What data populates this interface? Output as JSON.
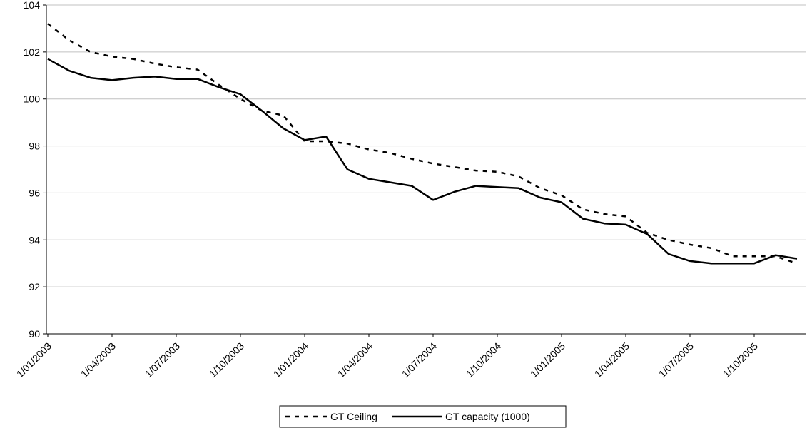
{
  "chart_data": {
    "type": "line",
    "title": "",
    "xlabel": "",
    "ylabel": "",
    "ylim": [
      90,
      104
    ],
    "y_ticks": [
      90,
      92,
      94,
      96,
      98,
      100,
      102,
      104
    ],
    "y_tick_labels": [
      "90",
      "92",
      "94",
      "96",
      "98",
      "100",
      "102",
      "104"
    ],
    "x_tick_labels": [
      "1/01/2003",
      "1/04/2003",
      "1/07/2003",
      "1/10/2003",
      "1/01/2004",
      "1/04/2004",
      "1/07/2004",
      "1/10/2004",
      "1/01/2005",
      "1/04/2005",
      "1/07/2005",
      "1/10/2005"
    ],
    "x": [
      "2003-01",
      "2003-02",
      "2003-03",
      "2003-04",
      "2003-05",
      "2003-06",
      "2003-07",
      "2003-08",
      "2003-09",
      "2003-10",
      "2003-11",
      "2003-12",
      "2004-01",
      "2004-02",
      "2004-03",
      "2004-04",
      "2004-05",
      "2004-06",
      "2004-07",
      "2004-08",
      "2004-09",
      "2004-10",
      "2004-11",
      "2004-12",
      "2005-01",
      "2005-02",
      "2005-03",
      "2005-04",
      "2005-05",
      "2005-06",
      "2005-07",
      "2005-08",
      "2005-09",
      "2005-10",
      "2005-11",
      "2005-12"
    ],
    "grid": "horizontal",
    "legend_position": "bottom-center",
    "series": [
      {
        "name": "GT Ceiling",
        "style": "dashed",
        "color": "#000000",
        "values": [
          103.2,
          102.5,
          102.0,
          101.8,
          101.7,
          101.5,
          101.35,
          101.25,
          100.6,
          100.0,
          99.5,
          99.3,
          98.2,
          98.2,
          98.1,
          97.85,
          97.7,
          97.45,
          97.25,
          97.1,
          96.95,
          96.9,
          96.7,
          96.2,
          95.9,
          95.3,
          95.1,
          95.0,
          94.3,
          94.0,
          93.8,
          93.65,
          93.3,
          93.3,
          93.3,
          93.0
        ]
      },
      {
        "name": "GT capacity (1000)",
        "style": "solid",
        "color": "#000000",
        "values": [
          101.7,
          101.2,
          100.9,
          100.8,
          100.9,
          100.95,
          100.85,
          100.85,
          100.5,
          100.2,
          99.5,
          98.75,
          98.25,
          98.4,
          97.0,
          96.6,
          96.45,
          96.3,
          95.7,
          96.05,
          96.3,
          96.25,
          96.2,
          95.8,
          95.6,
          94.9,
          94.7,
          94.65,
          94.25,
          93.4,
          93.1,
          93.0,
          93.0,
          93.0,
          93.35,
          93.2
        ]
      }
    ]
  }
}
